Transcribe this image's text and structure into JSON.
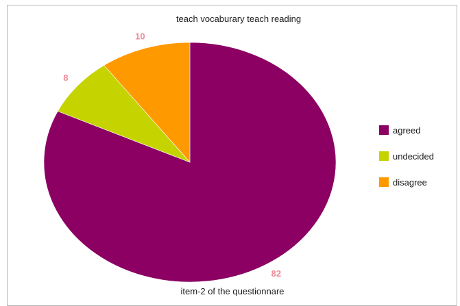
{
  "chart_data": {
    "type": "pie",
    "title": "teach vocaburary teach reading",
    "caption": "item-2 of the questionnare",
    "categories": [
      "agreed",
      "undecided",
      "disagree"
    ],
    "values": [
      82,
      8,
      10
    ],
    "colors": [
      "#8b0062",
      "#c5d300",
      "#ff9900"
    ],
    "data_labels": [
      "82",
      "8",
      "10"
    ],
    "data_label_color": "#f08a9a",
    "legend_position": "right"
  }
}
